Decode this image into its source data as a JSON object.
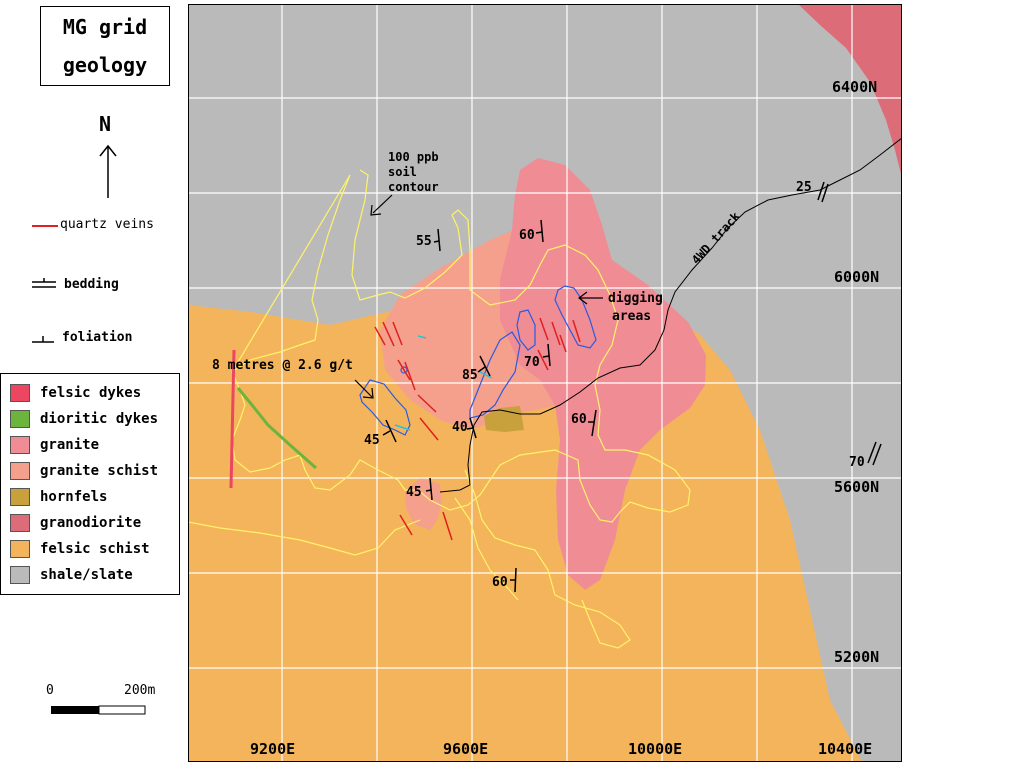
{
  "title": {
    "line1": "MG grid",
    "line2": "geology"
  },
  "north": {
    "label": "N"
  },
  "symbols": {
    "quartz_veins": "quartz veins",
    "bedding": "bedding",
    "foliation": "foliation"
  },
  "legend": [
    {
      "label": "felsic dykes",
      "color": "#ec4660"
    },
    {
      "label": "dioritic dykes",
      "color": "#6cb43c"
    },
    {
      "label": "granite",
      "color": "#f08c94"
    },
    {
      "label": "granite schist",
      "color": "#f4a08c"
    },
    {
      "label": "hornfels",
      "color": "#c8a03c"
    },
    {
      "label": "granodiorite",
      "color": "#dc6c78"
    },
    {
      "label": "felsic schist",
      "color": "#f4b45c"
    },
    {
      "label": "shale/slate",
      "color": "#bababa"
    }
  ],
  "scale": {
    "start": "0",
    "end": "200m"
  },
  "grid": {
    "northings": [
      "6400N",
      "6000N",
      "5600N",
      "5200N"
    ],
    "eastings": [
      "9200E",
      "9600E",
      "10000E",
      "10400E"
    ]
  },
  "annotations": {
    "soil_contour": [
      "100 ppb",
      "soil",
      "contour"
    ],
    "digging": [
      "digging",
      "areas"
    ],
    "intercept": "8 metres @ 2.6 g/t",
    "track": "4WD track"
  },
  "dips": [
    "25",
    "55",
    "60",
    "70",
    "85",
    "40",
    "45",
    "60",
    "45",
    "60",
    "70"
  ]
}
